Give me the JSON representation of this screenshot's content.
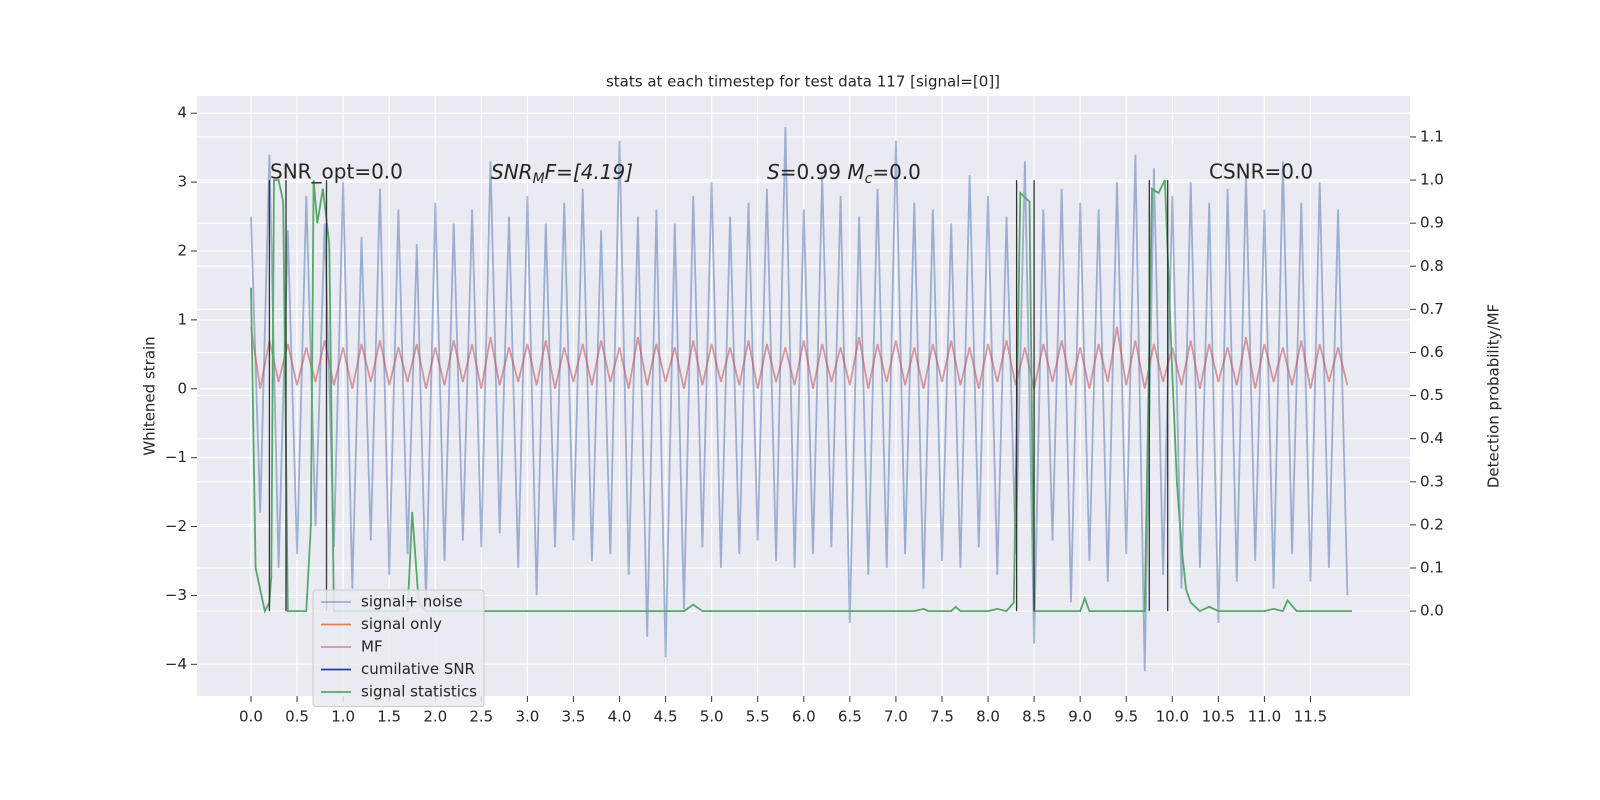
{
  "chart_data": {
    "type": "line",
    "title": "stats at each timestep for test data 117 [signal=[0]]",
    "ylabel": "Whitened strain",
    "y2label": "Detection probability/MF",
    "annotations": [
      "SNR_opt=0.0",
      [
        "SNR",
        "M",
        "F=[4.19]"
      ],
      [
        "S",
        "=0.99   ",
        "M",
        "c",
        "=0.0"
      ],
      "CSNR=0.0"
    ],
    "xlim": [
      -0.586,
      12.58
    ],
    "ylim": [
      -4.46,
      4.25
    ],
    "y2lim": [
      -0.197,
      1.195
    ],
    "xticks": [
      {
        "value": 0,
        "label": "0.0"
      },
      0.5,
      {
        "value": 1,
        "label": "1.0"
      },
      1.5,
      {
        "value": 2,
        "label": "2.0"
      },
      2.5,
      {
        "value": 3,
        "label": "3.0"
      },
      3.5,
      {
        "value": 4,
        "label": "4.0"
      },
      4.5,
      {
        "value": 5,
        "label": "5.0"
      },
      5.5,
      {
        "value": 6,
        "label": "6.0"
      },
      6.5,
      {
        "value": 7,
        "label": "7.0"
      },
      7.5,
      {
        "value": 8,
        "label": "8.0"
      },
      8.5,
      {
        "value": 9,
        "label": "9.0"
      },
      9.5,
      {
        "value": 10,
        "label": "10.0"
      },
      10.5,
      {
        "value": 11,
        "label": "11.0"
      },
      11.5
    ],
    "yticks": [
      4,
      3,
      2,
      1,
      0,
      {
        "value": -1,
        "label": "−1"
      },
      {
        "value": -2,
        "label": "−2"
      },
      {
        "value": -3,
        "label": "−3"
      },
      {
        "value": -4,
        "label": "−4"
      }
    ],
    "y2ticks": [
      {
        "value": 0,
        "label": "0.0"
      },
      0.1,
      0.2,
      0.3,
      0.4,
      0.5,
      0.6,
      0.7,
      0.8,
      0.9,
      {
        "value": 1,
        "label": "1.0"
      },
      1.1
    ],
    "grid": true,
    "x": [
      0,
      0.1,
      0.2,
      0.3,
      0.4,
      0.5,
      0.6,
      0.7,
      0.8,
      0.9,
      1,
      1.1,
      1.2,
      1.3,
      1.4,
      1.5,
      1.6,
      1.7,
      1.8,
      1.9,
      2,
      2.1,
      2.2,
      2.3,
      2.4,
      2.5,
      2.6,
      2.7,
      2.8,
      2.9,
      3,
      3.1,
      3.2,
      3.3,
      3.4,
      3.5,
      3.6,
      3.7,
      3.8,
      3.9,
      4,
      4.1,
      4.2,
      4.3,
      4.4,
      4.5,
      4.6,
      4.7,
      4.8,
      4.9,
      5,
      5.1,
      5.2,
      5.3,
      5.4,
      5.5,
      5.6,
      5.7,
      5.8,
      5.9,
      6,
      6.1,
      6.2,
      6.3,
      6.4,
      6.5,
      6.6,
      6.7,
      6.8,
      6.9,
      7,
      7.1,
      7.2,
      7.3,
      7.4,
      7.5,
      7.6,
      7.7,
      7.8,
      7.9,
      8,
      8.1,
      8.2,
      8.3,
      8.4,
      8.5,
      8.6,
      8.7,
      8.8,
      8.9,
      9,
      9.1,
      9.2,
      9.3,
      9.4,
      9.5,
      9.6,
      9.7,
      9.8,
      9.9,
      10,
      10.1,
      10.2,
      10.3,
      10.4,
      10.5,
      10.6,
      10.7,
      10.8,
      10.9,
      11,
      11.1,
      11.2,
      11.3,
      11.4,
      11.5,
      11.6,
      11.7,
      11.8,
      11.9
    ],
    "series": [
      {
        "name": "signal+ noise",
        "color": "#4c72b0",
        "values": [
          2.5,
          -1.8,
          3.4,
          -2.6,
          2.3,
          -2.4,
          2.8,
          -2.0,
          2.4,
          -2.3,
          3.0,
          -2.9,
          2.2,
          -2.2,
          2.9,
          -2.7,
          2.6,
          -2.4,
          2.1,
          -3.1,
          2.7,
          -2.5,
          2.4,
          -2.2,
          2.6,
          -2.3,
          3.3,
          -2.1,
          2.5,
          -2.6,
          2.8,
          -3.0,
          2.4,
          -2.3,
          2.7,
          -2.2,
          2.9,
          -2.5,
          2.3,
          -2.4,
          3.6,
          -2.7,
          2.5,
          -3.6,
          2.6,
          -3.9,
          2.4,
          -3.2,
          2.8,
          -2.3,
          3.0,
          -2.6,
          2.5,
          -2.4,
          2.7,
          -2.2,
          2.9,
          -2.5,
          3.8,
          -2.6,
          2.6,
          -2.4,
          3.1,
          -2.3,
          2.8,
          -3.4,
          2.5,
          -2.7,
          2.9,
          -2.6,
          3.6,
          -2.4,
          2.7,
          -2.9,
          2.6,
          -2.5,
          2.4,
          -2.6,
          3.1,
          -2.3,
          2.8,
          -2.7,
          2.5,
          -2.4,
          3.3,
          -3.7,
          2.6,
          -2.2,
          2.9,
          -3.1,
          2.7,
          -2.5,
          2.6,
          -2.8,
          3.0,
          -2.4,
          3.4,
          -4.1,
          3.2,
          -2.7,
          2.8,
          -2.9,
          3.0,
          -2.6,
          2.7,
          -3.4,
          2.9,
          -2.8,
          3.1,
          -2.5,
          2.6,
          -2.9,
          3.3,
          -2.4,
          2.7,
          -2.8,
          3.0,
          -2.6,
          2.6,
          -3.0
        ]
      },
      {
        "name": "signal only",
        "color": "#dd8452",
        "x": [],
        "values": []
      },
      {
        "name": "MF",
        "color": "#c44e52",
        "values": [
          0.9,
          0.0,
          0.7,
          0.1,
          0.65,
          0.05,
          0.6,
          0.1,
          0.7,
          0.05,
          0.6,
          0.0,
          0.65,
          0.1,
          0.7,
          0.05,
          0.6,
          0.1,
          0.65,
          0.0,
          0.6,
          0.05,
          0.7,
          0.1,
          0.65,
          0.0,
          0.75,
          0.05,
          0.6,
          0.1,
          0.65,
          0.05,
          0.7,
          0.0,
          0.6,
          0.1,
          0.65,
          0.05,
          0.7,
          0.1,
          0.6,
          0.0,
          0.75,
          0.05,
          0.65,
          0.1,
          0.6,
          0.0,
          0.7,
          0.05,
          0.65,
          0.1,
          0.6,
          0.05,
          0.7,
          0.0,
          0.65,
          0.1,
          0.6,
          0.05,
          0.7,
          0.0,
          0.65,
          0.1,
          0.6,
          0.05,
          0.75,
          0.0,
          0.65,
          0.1,
          0.7,
          0.05,
          0.6,
          0.0,
          0.65,
          0.1,
          0.7,
          0.05,
          0.6,
          0.0,
          0.65,
          0.1,
          0.7,
          0.05,
          0.6,
          0.0,
          0.65,
          0.1,
          0.7,
          0.05,
          0.6,
          0.0,
          0.65,
          0.1,
          0.9,
          0.05,
          0.7,
          0.0,
          0.65,
          0.1,
          0.6,
          0.05,
          0.7,
          0.0,
          0.65,
          0.1,
          0.6,
          0.05,
          0.75,
          0.0,
          0.65,
          0.1,
          0.6,
          0.05,
          0.7,
          0.0,
          0.65,
          0.1,
          0.6,
          0.05
        ]
      },
      {
        "name": "cumilative SNR",
        "color": "#1f3e8f",
        "axis": "y2",
        "x": [],
        "values": []
      },
      {
        "name": "signal statistics",
        "color": "#55a868",
        "axis": "y2",
        "x": [
          0,
          0.05,
          0.1,
          0.15,
          0.2,
          0.22,
          0.25,
          0.3,
          0.35,
          0.4,
          0.5,
          0.6,
          0.65,
          0.68,
          0.72,
          0.78,
          0.85,
          0.9,
          1.0,
          1.5,
          1.7,
          1.75,
          1.82,
          1.9,
          2.5,
          4.7,
          4.8,
          4.9,
          7.2,
          7.3,
          7.35,
          7.6,
          7.65,
          7.7,
          8.0,
          8.1,
          8.2,
          8.28,
          8.35,
          8.45,
          8.5,
          9.0,
          9.05,
          9.1,
          9.7,
          9.78,
          9.85,
          9.92,
          10.0,
          10.05,
          10.1,
          10.15,
          10.2,
          10.3,
          10.4,
          10.5,
          11.0,
          11.1,
          11.2,
          11.25,
          11.35,
          11.95
        ],
        "values": [
          0.75,
          0.1,
          0.05,
          0.0,
          0.02,
          0.08,
          1.0,
          1.0,
          0.95,
          0.0,
          0.0,
          0.0,
          0.2,
          1.0,
          0.9,
          0.98,
          0.85,
          0.0,
          0.0,
          0.0,
          0.0,
          0.23,
          0.02,
          0.0,
          0.0,
          0.0,
          0.015,
          0.0,
          0.0,
          0.005,
          0.0,
          0.0,
          0.01,
          0.0,
          0.0,
          0.005,
          0.0,
          0.02,
          0.97,
          0.95,
          0.0,
          0.0,
          0.03,
          0.0,
          0.0,
          0.98,
          0.97,
          1.0,
          0.55,
          0.3,
          0.15,
          0.05,
          0.02,
          0.0,
          0.01,
          0.0,
          0.0,
          0.005,
          0.0,
          0.025,
          0.0,
          0.0
        ]
      },
      {
        "color": "#333333",
        "axis": "y2",
        "x": [
          0.2,
          0.2,
          0.2,
          0.38,
          0.38,
          0.38,
          0.82,
          0.82,
          0.82,
          8.31,
          8.31,
          8.31,
          8.5,
          8.5,
          8.5,
          9.75,
          9.75,
          9.75,
          9.95,
          9.95
        ],
        "values": [
          0,
          1,
          null,
          0,
          1,
          null,
          0,
          1,
          null,
          0,
          1,
          null,
          0,
          1,
          null,
          0,
          1,
          null,
          0,
          1
        ]
      }
    ]
  }
}
